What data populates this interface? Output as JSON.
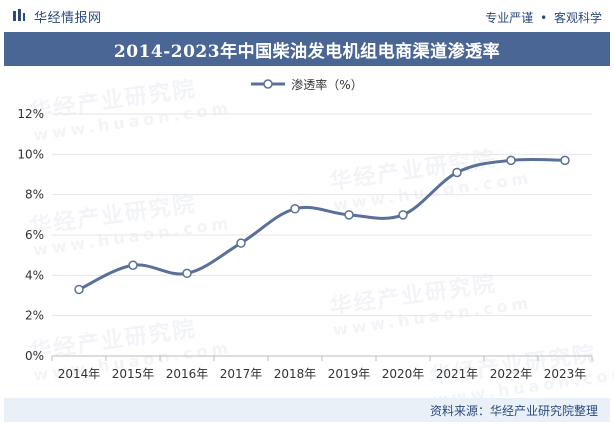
{
  "header": {
    "brand": "华经情报网",
    "tagline_left": "专业严谨",
    "tagline_sep": "•",
    "tagline_right": "客观科学"
  },
  "footer": {
    "source_label": "资料来源：",
    "source_value": "华经产业研究院整理"
  },
  "watermark": {
    "text": "华经产业研究院",
    "sub": "www.huaon.com"
  },
  "colors": {
    "title_bar": "#4a6694",
    "line": "#5a7099",
    "accent_text": "#2b4a7e"
  },
  "chart_data": {
    "type": "line",
    "title": "2014-2023年中国柴油发电机组电商渠道渗透率",
    "categories": [
      "2014年",
      "2015年",
      "2016年",
      "2017年",
      "2018年",
      "2019年",
      "2020年",
      "2021年",
      "2022年",
      "2023年"
    ],
    "series": [
      {
        "name": "渗透率（%）",
        "values": [
          3.3,
          4.5,
          4.1,
          5.6,
          7.3,
          7.0,
          7.0,
          9.1,
          9.7,
          9.7
        ]
      }
    ],
    "ylim": [
      0,
      12
    ],
    "yticks": [
      "0%",
      "2%",
      "4%",
      "6%",
      "8%",
      "10%",
      "12%"
    ],
    "ytick_values": [
      0,
      2,
      4,
      6,
      8,
      10,
      12
    ],
    "xlabel": "",
    "ylabel": "",
    "legend_position": "top",
    "grid": true,
    "marker": "hollow-circle",
    "smooth": true
  }
}
